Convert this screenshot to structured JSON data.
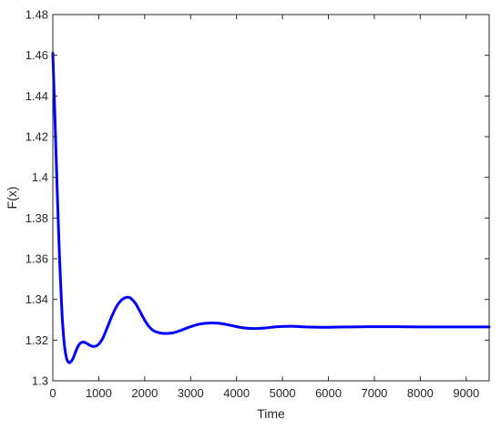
{
  "chart_data": {
    "type": "line",
    "title": "",
    "xlabel": "Time",
    "ylabel": "F(x)",
    "xlim": [
      0,
      9500
    ],
    "ylim": [
      1.3,
      1.48
    ],
    "xticks": [
      0,
      1000,
      2000,
      3000,
      4000,
      5000,
      6000,
      7000,
      8000,
      9000
    ],
    "yticks": [
      1.3,
      1.32,
      1.34,
      1.36,
      1.38,
      1.4,
      1.42,
      1.44,
      1.46,
      1.48
    ],
    "xtick_labels": [
      "0",
      "1000",
      "2000",
      "3000",
      "4000",
      "5000",
      "6000",
      "7000",
      "8000",
      "9000"
    ],
    "ytick_labels": [
      "1.3",
      "1.32",
      "1.34",
      "1.36",
      "1.38",
      "1.4",
      "1.42",
      "1.44",
      "1.46",
      "1.48"
    ],
    "grid": false,
    "box": true,
    "series": [
      {
        "color": "#0000ff",
        "x": [
          0,
          50,
          100,
          150,
          200,
          250,
          300,
          350,
          400,
          450,
          500,
          550,
          600,
          650,
          700,
          750,
          800,
          850,
          900,
          950,
          1000,
          1050,
          1100,
          1200,
          1300,
          1400,
          1500,
          1600,
          1650,
          1700,
          1800,
          1900,
          2000,
          2100,
          2200,
          2300,
          2400,
          2500,
          2600,
          2700,
          2800,
          3000,
          3200,
          3400,
          3600,
          3800,
          4000,
          4200,
          4400,
          4600,
          4800,
          5000,
          5200,
          5400,
          5600,
          5800,
          6000,
          6200,
          6500,
          7000,
          7500,
          8000,
          8500,
          9000,
          9500
        ],
        "y": [
          1.461,
          1.426,
          1.39,
          1.358,
          1.333,
          1.318,
          1.311,
          1.309,
          1.3095,
          1.3115,
          1.3145,
          1.317,
          1.3185,
          1.319,
          1.3188,
          1.3182,
          1.3175,
          1.317,
          1.3169,
          1.3172,
          1.318,
          1.3195,
          1.3215,
          1.327,
          1.3325,
          1.337,
          1.3398,
          1.341,
          1.341,
          1.3405,
          1.338,
          1.334,
          1.3298,
          1.3265,
          1.3245,
          1.3237,
          1.3233,
          1.3233,
          1.3235,
          1.3241,
          1.3249,
          1.3266,
          1.3279,
          1.3284,
          1.3283,
          1.3276,
          1.3266,
          1.3259,
          1.3257,
          1.3259,
          1.3264,
          1.3267,
          1.3268,
          1.3266,
          1.3264,
          1.3263,
          1.3263,
          1.3264,
          1.3265,
          1.3266,
          1.3266,
          1.3265,
          1.3265,
          1.3265,
          1.3265
        ]
      }
    ]
  }
}
